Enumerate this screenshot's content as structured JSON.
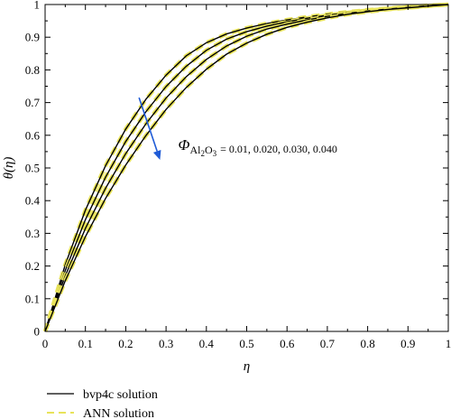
{
  "chart_data": {
    "type": "line",
    "title": "",
    "xlabel": "η",
    "ylabel": "θ(η)",
    "xlim": [
      0,
      1
    ],
    "ylim": [
      0,
      1
    ],
    "xticks": [
      "0",
      "0.1",
      "0.2",
      "0.3",
      "0.4",
      "0.5",
      "0.6",
      "0.7",
      "0.8",
      "0.9",
      "1"
    ],
    "yticks": [
      "0",
      "0.1",
      "0.2",
      "0.3",
      "0.4",
      "0.5",
      "0.6",
      "0.7",
      "0.8",
      "0.9",
      "1"
    ],
    "grid": false,
    "legend_position": "bottom-left",
    "annotation": {
      "symbol": "Φ",
      "subscript": "Al",
      "sub2": "2",
      "sub3": "O",
      "sub4": "3",
      "values_text": "= 0.01, 0.020, 0.030, 0.040",
      "arrow_color": "#1f5bd6"
    },
    "legend": [
      {
        "label": "bvp4c solution",
        "color": "#000000",
        "style": "solid"
      },
      {
        "label": "ANN solution",
        "color": "#e8e35a",
        "style": "dashed"
      }
    ],
    "x": [
      0,
      0.05,
      0.1,
      0.15,
      0.2,
      0.25,
      0.3,
      0.35,
      0.4,
      0.45,
      0.5,
      0.55,
      0.6,
      0.65,
      0.7,
      0.75,
      0.8,
      0.85,
      0.9,
      0.95,
      1.0
    ],
    "series": [
      {
        "values": [
          0.0,
          0.204,
          0.371,
          0.507,
          0.619,
          0.71,
          0.784,
          0.843,
          0.883,
          0.91,
          0.928,
          0.942,
          0.953,
          0.962,
          0.97,
          0.977,
          0.983,
          0.988,
          0.993,
          0.997,
          1.0
        ]
      },
      {
        "values": [
          0.0,
          0.186,
          0.342,
          0.472,
          0.581,
          0.672,
          0.749,
          0.811,
          0.86,
          0.894,
          0.917,
          0.934,
          0.947,
          0.958,
          0.967,
          0.975,
          0.982,
          0.987,
          0.992,
          0.996,
          1.0
        ]
      },
      {
        "values": [
          0.0,
          0.17,
          0.315,
          0.438,
          0.544,
          0.635,
          0.714,
          0.779,
          0.832,
          0.873,
          0.903,
          0.925,
          0.94,
          0.953,
          0.964,
          0.973,
          0.98,
          0.986,
          0.991,
          0.996,
          1.0
        ]
      },
      {
        "values": [
          0.0,
          0.155,
          0.29,
          0.407,
          0.509,
          0.599,
          0.679,
          0.746,
          0.802,
          0.848,
          0.882,
          0.909,
          0.93,
          0.946,
          0.959,
          0.97,
          0.978,
          0.985,
          0.99,
          0.995,
          1.0
        ]
      }
    ],
    "colors": {
      "solid": "#000000",
      "dashed": "#e8e35a"
    }
  }
}
